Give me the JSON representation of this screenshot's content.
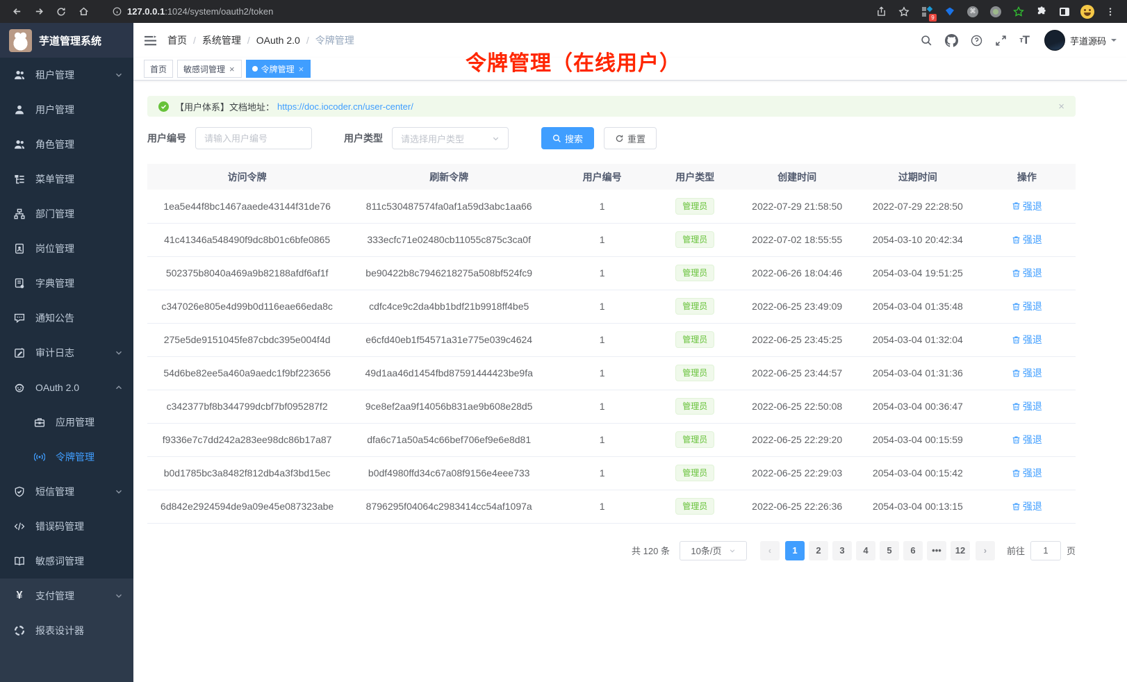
{
  "colors": {
    "accent": "#409eff",
    "success": "#67c23a",
    "tag_bg": "#f0f9eb",
    "overlay_red": "#ff2600",
    "sidebar_dark": "#1f2d3d",
    "sidebar_base": "#2d3a4b"
  },
  "browser": {
    "url_host": "127.0.0.1",
    "url_rest": ":1024/system/oauth2/token",
    "ext_badge": "9"
  },
  "sidebar": {
    "app_title": "芋道管理系统",
    "items": [
      {
        "label": "租户管理",
        "icon": "tenant",
        "group": "sub",
        "chevron": "down"
      },
      {
        "label": "用户管理",
        "icon": "user",
        "group": "sub"
      },
      {
        "label": "角色管理",
        "icon": "role",
        "group": "sub"
      },
      {
        "label": "菜单管理",
        "icon": "menu",
        "group": "sub"
      },
      {
        "label": "部门管理",
        "icon": "dept",
        "group": "sub"
      },
      {
        "label": "岗位管理",
        "icon": "post",
        "group": "sub"
      },
      {
        "label": "字典管理",
        "icon": "dict",
        "group": "sub"
      },
      {
        "label": "通知公告",
        "icon": "notice",
        "group": "sub"
      },
      {
        "label": "审计日志",
        "icon": "log",
        "group": "sub",
        "chevron": "down"
      },
      {
        "label": "OAuth 2.0",
        "icon": "oauth",
        "group": "sub",
        "chevron": "up"
      },
      {
        "label": "应用管理",
        "icon": "app",
        "group": "child"
      },
      {
        "label": "令牌管理",
        "icon": "token",
        "group": "child",
        "active": true
      },
      {
        "label": "短信管理",
        "icon": "sms",
        "group": "sub",
        "chevron": "down"
      },
      {
        "label": "错误码管理",
        "icon": "errcode",
        "group": "sub"
      },
      {
        "label": "敏感词管理",
        "icon": "sensitive",
        "group": "sub"
      },
      {
        "label": "支付管理",
        "icon": "pay",
        "group": "top",
        "chevron": "down"
      },
      {
        "label": "报表设计器",
        "icon": "report",
        "group": "top"
      }
    ]
  },
  "navbar": {
    "breadcrumbs": [
      "首页",
      "系统管理",
      "OAuth 2.0",
      "令牌管理"
    ],
    "username": "芋道源码"
  },
  "tabs": [
    {
      "label": "首页",
      "closable": false,
      "active": false
    },
    {
      "label": "敏感词管理",
      "closable": true,
      "active": false
    },
    {
      "label": "令牌管理",
      "closable": true,
      "active": true
    }
  ],
  "overlay_title": "令牌管理（在线用户）",
  "alert": {
    "prefix": "【用户体系】文档地址：",
    "link": "https://doc.iocoder.cn/user-center/",
    "close": "×"
  },
  "filters": {
    "user_id_label": "用户编号",
    "user_id_placeholder": "请输入用户编号",
    "user_type_label": "用户类型",
    "user_type_placeholder": "请选择用户类型",
    "search_label": "搜索",
    "reset_label": "重置"
  },
  "table": {
    "columns": [
      "访问令牌",
      "刷新令牌",
      "用户编号",
      "用户类型",
      "创建时间",
      "过期时间",
      "操作"
    ],
    "action_label": "强退",
    "rows": [
      {
        "access_token": "1ea5e44f8bc1467aaede43144f31de76",
        "refresh_token": "811c530487574fa0af1a59d3abc1aa66",
        "user_id": "1",
        "user_type": "管理员",
        "create_time": "2022-07-29 21:58:50",
        "expire_time": "2022-07-29 22:28:50"
      },
      {
        "access_token": "41c41346a548490f9dc8b01c6bfe0865",
        "refresh_token": "333ecfc71e02480cb11055c875c3ca0f",
        "user_id": "1",
        "user_type": "管理员",
        "create_time": "2022-07-02 18:55:55",
        "expire_time": "2054-03-10 20:42:34"
      },
      {
        "access_token": "502375b8040a469a9b82188afdf6af1f",
        "refresh_token": "be90422b8c7946218275a508bf524fc9",
        "user_id": "1",
        "user_type": "管理员",
        "create_time": "2022-06-26 18:04:46",
        "expire_time": "2054-03-04 19:51:25"
      },
      {
        "access_token": "c347026e805e4d99b0d116eae66eda8c",
        "refresh_token": "cdfc4ce9c2da4bb1bdf21b9918ff4be5",
        "user_id": "1",
        "user_type": "管理员",
        "create_time": "2022-06-25 23:49:09",
        "expire_time": "2054-03-04 01:35:48"
      },
      {
        "access_token": "275e5de9151045fe87cbdc395e004f4d",
        "refresh_token": "e6cfd40eb1f54571a31e775e039c4624",
        "user_id": "1",
        "user_type": "管理员",
        "create_time": "2022-06-25 23:45:25",
        "expire_time": "2054-03-04 01:32:04"
      },
      {
        "access_token": "54d6be82ee5a460a9aedc1f9bf223656",
        "refresh_token": "49d1aa46d1454fbd87591444423be9fa",
        "user_id": "1",
        "user_type": "管理员",
        "create_time": "2022-06-25 23:44:57",
        "expire_time": "2054-03-04 01:31:36"
      },
      {
        "access_token": "c342377bf8b344799dcbf7bf095287f2",
        "refresh_token": "9ce8ef2aa9f14056b831ae9b608e28d5",
        "user_id": "1",
        "user_type": "管理员",
        "create_time": "2022-06-25 22:50:08",
        "expire_time": "2054-03-04 00:36:47"
      },
      {
        "access_token": "f9336e7c7dd242a283ee98dc86b17a87",
        "refresh_token": "dfa6c71a50a54c66bef706ef9e6e8d81",
        "user_id": "1",
        "user_type": "管理员",
        "create_time": "2022-06-25 22:29:20",
        "expire_time": "2054-03-04 00:15:59"
      },
      {
        "access_token": "b0d1785bc3a8482f812db4a3f3bd15ec",
        "refresh_token": "b0df4980ffd34c67a08f9156e4eee733",
        "user_id": "1",
        "user_type": "管理员",
        "create_time": "2022-06-25 22:29:03",
        "expire_time": "2054-03-04 00:15:42"
      },
      {
        "access_token": "6d842e2924594de9a09e45e087323abe",
        "refresh_token": "8796295f04064c2983414cc54af1097a",
        "user_id": "1",
        "user_type": "管理员",
        "create_time": "2022-06-25 22:26:36",
        "expire_time": "2054-03-04 00:13:15"
      }
    ]
  },
  "pagination": {
    "total": "共 120 条",
    "page_size": "10条/页",
    "pages": [
      "1",
      "2",
      "3",
      "4",
      "5",
      "6",
      "•••",
      "12"
    ],
    "active": "1",
    "goto_label": "前往",
    "goto_value": "1",
    "unit_label": "页"
  }
}
